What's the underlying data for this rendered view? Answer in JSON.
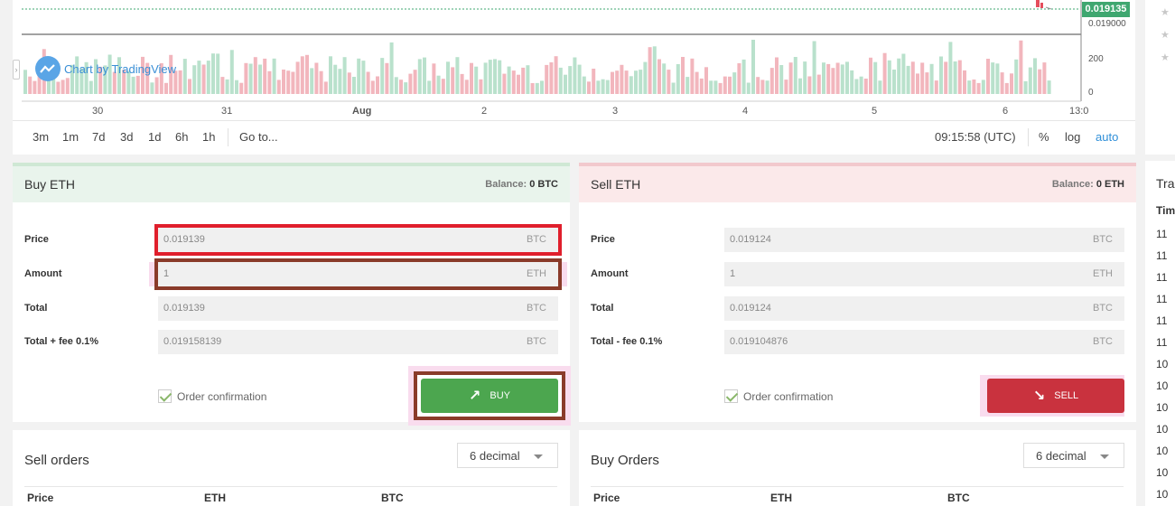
{
  "chart": {
    "attribution": "Chart by TradingView",
    "current_price": "0.019135",
    "price_axis": [
      "0.019000"
    ],
    "volume_axis": [
      "200",
      "0"
    ],
    "x_labels": [
      "30",
      "31",
      "Aug",
      "2",
      "3",
      "4",
      "5",
      "6",
      "13:0"
    ],
    "time_ranges": [
      "3m",
      "1m",
      "7d",
      "3d",
      "1d",
      "6h",
      "1h"
    ],
    "goto": "Go to...",
    "clock": "09:15:58 (UTC)",
    "percent": "%",
    "log": "log",
    "auto": "auto",
    "colors": {
      "up": "#b9e1cc",
      "down": "#f2b6bd",
      "price_tag": "#3fa770"
    }
  },
  "buy": {
    "title": "Buy ETH",
    "balance_label": "Balance:",
    "balance_value": "0 BTC",
    "price_label": "Price",
    "price_value": "0.019139",
    "price_unit": "BTC",
    "amount_label": "Amount",
    "amount_value": "1",
    "amount_unit": "ETH",
    "total_label": "Total",
    "total_value": "0.019139",
    "total_unit": "BTC",
    "fee_label": "Total + fee 0.1%",
    "fee_value": "0.019158139",
    "fee_unit": "BTC",
    "confirm_label": "Order confirmation",
    "button_label": "BUY"
  },
  "sell": {
    "title": "Sell ETH",
    "balance_label": "Balance:",
    "balance_value": "0 ETH",
    "price_label": "Price",
    "price_value": "0.019124",
    "price_unit": "BTC",
    "amount_label": "Amount",
    "amount_value": "1",
    "amount_unit": "ETH",
    "total_label": "Total",
    "total_value": "0.019124",
    "total_unit": "BTC",
    "fee_label": "Total - fee 0.1%",
    "fee_value": "0.019104876",
    "fee_unit": "BTC",
    "confirm_label": "Order confirmation",
    "button_label": "SELL"
  },
  "sell_orders": {
    "title": "Sell orders",
    "decimal": "6 decimal",
    "columns": [
      "Price",
      "ETH",
      "BTC"
    ]
  },
  "buy_orders": {
    "title": "Buy Orders",
    "decimal": "6 decimal",
    "columns": [
      "Price",
      "ETH",
      "BTC"
    ]
  },
  "trades": {
    "title": "Tra",
    "header": "Tim",
    "rows": [
      "11",
      "11",
      "11",
      "11",
      "11",
      "11",
      "10",
      "10",
      "10",
      "10",
      "10",
      "10",
      "10"
    ]
  }
}
